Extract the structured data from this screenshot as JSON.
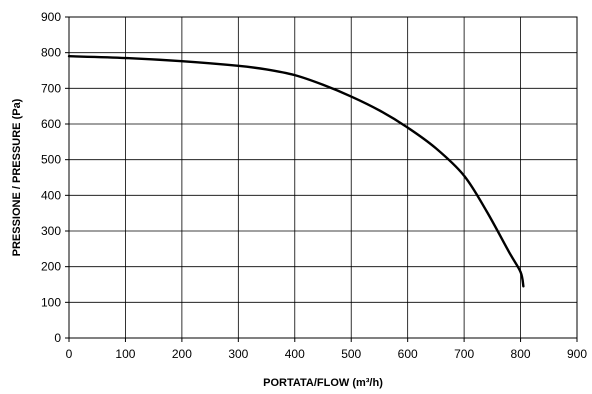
{
  "chart_data": {
    "type": "line",
    "title": "",
    "xlabel": "PORTATA/FLOW (m³/h)",
    "ylabel": "PRESSIONE / PRESSURE (Pa)",
    "xlim": [
      0,
      900
    ],
    "ylim": [
      0,
      900
    ],
    "x_ticks": [
      0,
      100,
      200,
      300,
      400,
      500,
      600,
      700,
      800,
      900
    ],
    "y_ticks": [
      0,
      100,
      200,
      300,
      400,
      500,
      600,
      700,
      800,
      900
    ],
    "grid": true,
    "line_color": "#000000",
    "series": [
      {
        "x": [
          0,
          100,
          200,
          300,
          350,
          400,
          450,
          500,
          550,
          600,
          650,
          700,
          740,
          780,
          800,
          805
        ],
        "y": [
          790,
          785,
          776,
          763,
          753,
          737,
          710,
          677,
          638,
          590,
          532,
          455,
          355,
          240,
          185,
          145
        ]
      }
    ]
  }
}
